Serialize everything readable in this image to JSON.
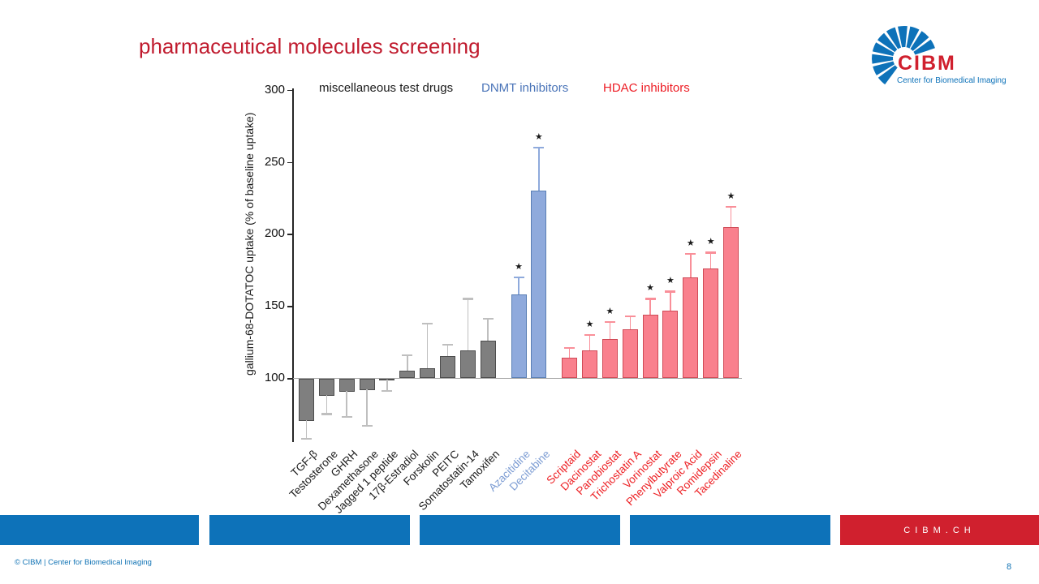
{
  "slide": {
    "title": "pharmaceutical molecules screening",
    "page_number": "8",
    "footer_copyright": "© CIBM | Center for Biomedical Imaging",
    "footer_site": "CIBM.CH"
  },
  "logo": {
    "acronym": "CIBM",
    "tagline": "Center for Biomedical Imaging"
  },
  "colors": {
    "title_red": "#c01b2e",
    "brand_blue": "#0d72b9",
    "brand_red": "#d0202e",
    "footer_text_blue": "#1274b5"
  },
  "chart_data": {
    "type": "bar",
    "title": "",
    "xlabel": "",
    "ylabel": "gallium-68-DOTATOC uptake (% of baseline uptake)",
    "ylim": [
      50,
      300
    ],
    "yticks": [
      100,
      150,
      200,
      250,
      300
    ],
    "baseline": 100,
    "grid": false,
    "legend_position": "top",
    "significance_marker": "★",
    "legend": [
      {
        "label": "miscellaneous test drugs",
        "color": "#1a1a1a"
      },
      {
        "label": "DNMT inhibitors",
        "color": "#4a74b8"
      },
      {
        "label": "HDAC inhibitors",
        "color": "#ed1c24"
      }
    ],
    "groups": [
      {
        "name": "miscellaneous test drugs",
        "fill": "#7f7f7f",
        "edge": "#4d4d4d",
        "err_color": "#bfbfbf",
        "label_color": "#1a1a1a",
        "bars": [
          {
            "label": "TGF-β",
            "value": 71,
            "err": 58,
            "sig": false
          },
          {
            "label": "Testosterone",
            "value": 88,
            "err": 75,
            "sig": false
          },
          {
            "label": "GHRH",
            "value": 91,
            "err": 73,
            "sig": false
          },
          {
            "label": "Dexamethasone",
            "value": 92,
            "err": 67,
            "sig": false
          },
          {
            "label": "Jagged 1 peptide",
            "value": 99,
            "err": 91,
            "sig": false
          },
          {
            "label": "17β-Estradiol",
            "value": 105,
            "err": 116,
            "sig": false
          },
          {
            "label": "Forskolin",
            "value": 107,
            "err": 138,
            "sig": false
          },
          {
            "label": "PEITC",
            "value": 115,
            "err": 123,
            "sig": false
          },
          {
            "label": "Somatostatin-14",
            "value": 119,
            "err": 155,
            "sig": false
          },
          {
            "label": "Tamoxifen",
            "value": 126,
            "err": 141,
            "sig": false
          }
        ]
      },
      {
        "name": "DNMT inhibitors",
        "fill": "#8faadc",
        "edge": "#5a7fb5",
        "err_color": "#8faadc",
        "label_color": "#7c9cd3",
        "bars": [
          {
            "label": "Azacitidine",
            "value": 158,
            "err": 170,
            "sig": true
          },
          {
            "label": "Decitabine",
            "value": 230,
            "err": 260,
            "sig": true
          }
        ]
      },
      {
        "name": "HDAC inhibitors",
        "fill": "#f9808d",
        "edge": "#cf4a56",
        "err_color": "#f98f99",
        "label_color": "#ed2024",
        "bars": [
          {
            "label": "Scriptaid",
            "value": 114,
            "err": 121,
            "sig": false
          },
          {
            "label": "Dacinostat",
            "value": 119,
            "err": 130,
            "sig": true
          },
          {
            "label": "Panobiostat",
            "value": 127,
            "err": 139,
            "sig": true
          },
          {
            "label": "Trichostatin A",
            "value": 134,
            "err": 143,
            "sig": false
          },
          {
            "label": "Vorinostat",
            "value": 144,
            "err": 155,
            "sig": true
          },
          {
            "label": "Phenylbutyrate",
            "value": 147,
            "err": 160,
            "sig": true
          },
          {
            "label": "Valproic Acid",
            "value": 170,
            "err": 186,
            "sig": true
          },
          {
            "label": "Romidepsin",
            "value": 176,
            "err": 187,
            "sig": true
          },
          {
            "label": "Tacedinaline",
            "value": 205,
            "err": 219,
            "sig": true
          }
        ]
      }
    ]
  }
}
